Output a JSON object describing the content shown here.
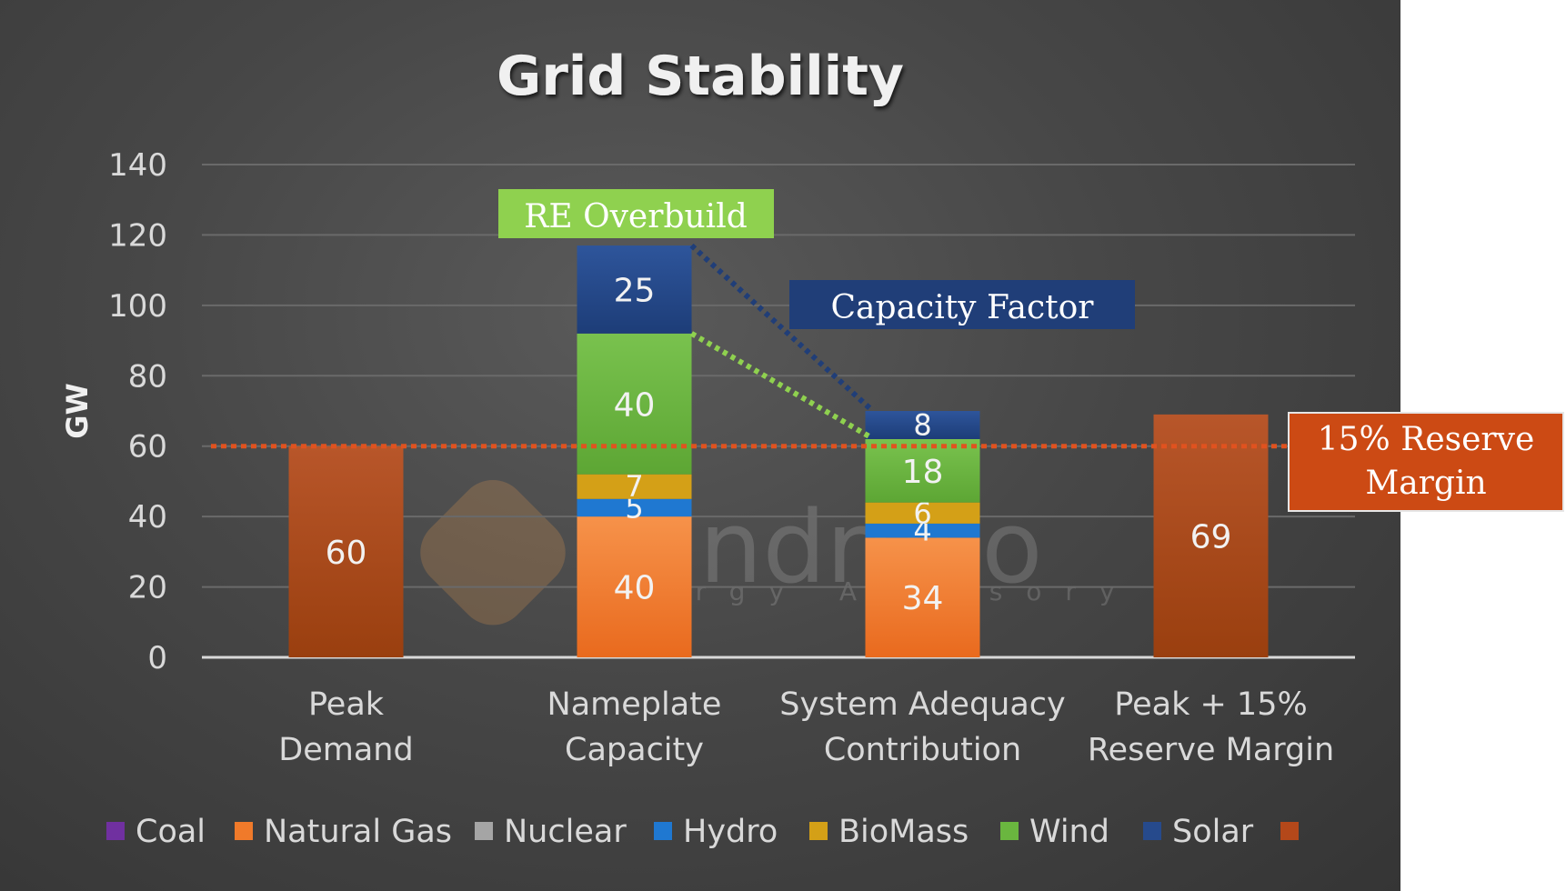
{
  "chart_data": {
    "type": "bar",
    "stacked": true,
    "title": "Grid Stability",
    "ylabel": "GW",
    "xlabel": "",
    "ylim": [
      0,
      140
    ],
    "yticks": [
      0,
      20,
      40,
      60,
      80,
      100,
      120,
      140
    ],
    "categories": [
      [
        "Peak",
        "Demand"
      ],
      [
        "Nameplate",
        "Capacity"
      ],
      [
        "System Adequacy",
        "Contribution"
      ],
      [
        "Peak + 15%",
        "Reserve Margin"
      ]
    ],
    "series": [
      {
        "name": "Coal",
        "color": "#7030a0",
        "values": [
          null,
          null,
          null,
          null
        ]
      },
      {
        "name": "Natural Gas",
        "color": "#f07a2a",
        "values": [
          null,
          40,
          34,
          null
        ]
      },
      {
        "name": "Nuclear",
        "color": "#a5a5a5",
        "values": [
          null,
          null,
          null,
          null
        ]
      },
      {
        "name": "Hydro",
        "color": "#1f78d1",
        "values": [
          null,
          5,
          4,
          null
        ]
      },
      {
        "name": "BioMass",
        "color": "#d4a017",
        "values": [
          null,
          7,
          6,
          null
        ]
      },
      {
        "name": "Wind",
        "color": "#6ab63f",
        "values": [
          null,
          40,
          18,
          null
        ]
      },
      {
        "name": "Solar",
        "color": "#264a8c",
        "values": [
          null,
          25,
          8,
          null
        ]
      },
      {
        "name": "",
        "color": "#b4481a",
        "values": [
          60,
          null,
          null,
          69
        ]
      }
    ],
    "reference_line": {
      "value": 60,
      "color": "#e0521f"
    },
    "annotations": {
      "re_overbuild": "RE Overbuild",
      "capacity_factor": "Capacity Factor",
      "reserve_margin": [
        "15% Reserve",
        "Margin"
      ]
    },
    "legend_position": "bottom",
    "watermark": {
      "name": "Pandreco",
      "tagline": "Energy Advisory"
    }
  }
}
